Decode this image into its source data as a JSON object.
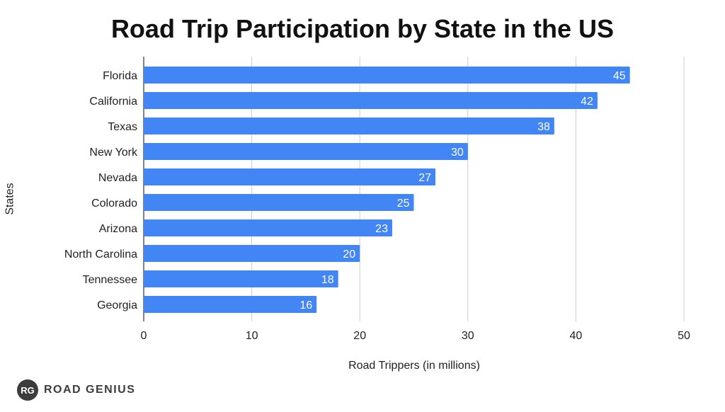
{
  "chart_data": {
    "type": "bar",
    "orientation": "horizontal",
    "title": "Road Trip Participation by State in the US",
    "xlabel": "Road Trippers (in millions)",
    "ylabel": "States",
    "categories": [
      "Florida",
      "California",
      "Texas",
      "New York",
      "Nevada",
      "Colorado",
      "Arizona",
      "North Carolina",
      "Tennessee",
      "Georgia"
    ],
    "values": [
      45,
      42,
      38,
      30,
      27,
      25,
      23,
      20,
      18,
      16
    ],
    "xlim": [
      0,
      50
    ],
    "xticks": [
      0,
      10,
      20,
      30,
      40,
      50
    ],
    "grid": "vertical",
    "bar_color": "#4285f4",
    "data_labels": true
  },
  "brand": {
    "logo_text": "RG",
    "name": "ROAD GENIUS"
  }
}
